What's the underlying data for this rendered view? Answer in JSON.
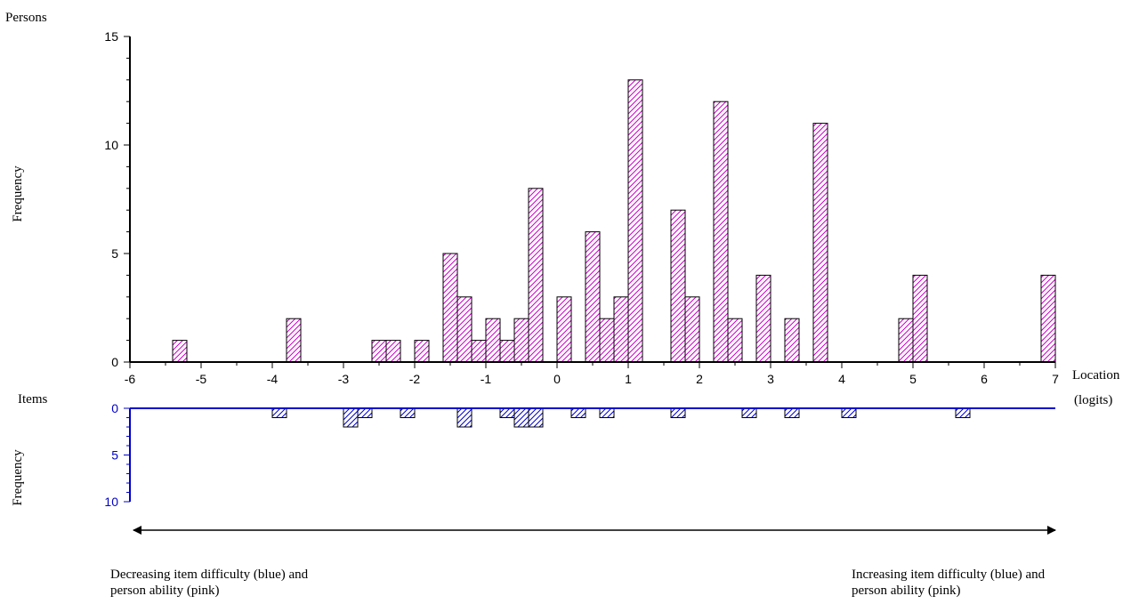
{
  "chart_data": {
    "type": "bar",
    "x_axis": {
      "label_line1": "Location",
      "label_line2": "(logits)",
      "range": [
        -6,
        7
      ],
      "ticks": [
        -6,
        -5,
        -4,
        -3,
        -2,
        -1,
        0,
        1,
        2,
        3,
        4,
        5,
        6,
        7
      ]
    },
    "persons": {
      "panel_label": "Persons",
      "ylabel": "Frequency",
      "ylim": [
        0,
        15
      ],
      "yticks": [
        0,
        5,
        10,
        15
      ],
      "color": "#cc00cc",
      "bars": [
        {
          "x": -5.3,
          "value": 1
        },
        {
          "x": -3.7,
          "value": 2
        },
        {
          "x": -2.5,
          "value": 1
        },
        {
          "x": -2.3,
          "value": 1
        },
        {
          "x": -1.9,
          "value": 1
        },
        {
          "x": -1.5,
          "value": 5
        },
        {
          "x": -1.3,
          "value": 3
        },
        {
          "x": -1.1,
          "value": 1
        },
        {
          "x": -0.9,
          "value": 2
        },
        {
          "x": -0.7,
          "value": 1
        },
        {
          "x": -0.5,
          "value": 2
        },
        {
          "x": -0.3,
          "value": 8
        },
        {
          "x": 0.1,
          "value": 3
        },
        {
          "x": 0.5,
          "value": 6
        },
        {
          "x": 0.7,
          "value": 2
        },
        {
          "x": 0.9,
          "value": 3
        },
        {
          "x": 1.1,
          "value": 13
        },
        {
          "x": 1.7,
          "value": 7
        },
        {
          "x": 1.9,
          "value": 3
        },
        {
          "x": 2.3,
          "value": 12
        },
        {
          "x": 2.5,
          "value": 2
        },
        {
          "x": 2.9,
          "value": 4
        },
        {
          "x": 3.3,
          "value": 2
        },
        {
          "x": 3.7,
          "value": 11
        },
        {
          "x": 4.9,
          "value": 2
        },
        {
          "x": 5.1,
          "value": 4
        },
        {
          "x": 6.9,
          "value": 4
        }
      ]
    },
    "items": {
      "panel_label": "Items",
      "ylabel": "Frequency",
      "ylim": [
        0,
        10
      ],
      "yticks": [
        0,
        5,
        10
      ],
      "color": "#0000cc",
      "bars": [
        {
          "x": -3.9,
          "value": 1
        },
        {
          "x": -2.9,
          "value": 2
        },
        {
          "x": -2.7,
          "value": 1
        },
        {
          "x": -2.1,
          "value": 1
        },
        {
          "x": -1.3,
          "value": 2
        },
        {
          "x": -0.7,
          "value": 1
        },
        {
          "x": -0.5,
          "value": 2
        },
        {
          "x": -0.3,
          "value": 2
        },
        {
          "x": 0.3,
          "value": 1
        },
        {
          "x": 0.7,
          "value": 1
        },
        {
          "x": 1.7,
          "value": 1
        },
        {
          "x": 2.7,
          "value": 1
        },
        {
          "x": 3.3,
          "value": 1
        },
        {
          "x": 4.1,
          "value": 1
        },
        {
          "x": 5.7,
          "value": 1
        }
      ]
    }
  },
  "captions": {
    "left_line1": "Decreasing item difficulty (blue) and",
    "left_line2": "person ability (pink)",
    "right_line1": "Increasing item difficulty (blue) and",
    "right_line2": "person ability (pink)"
  }
}
